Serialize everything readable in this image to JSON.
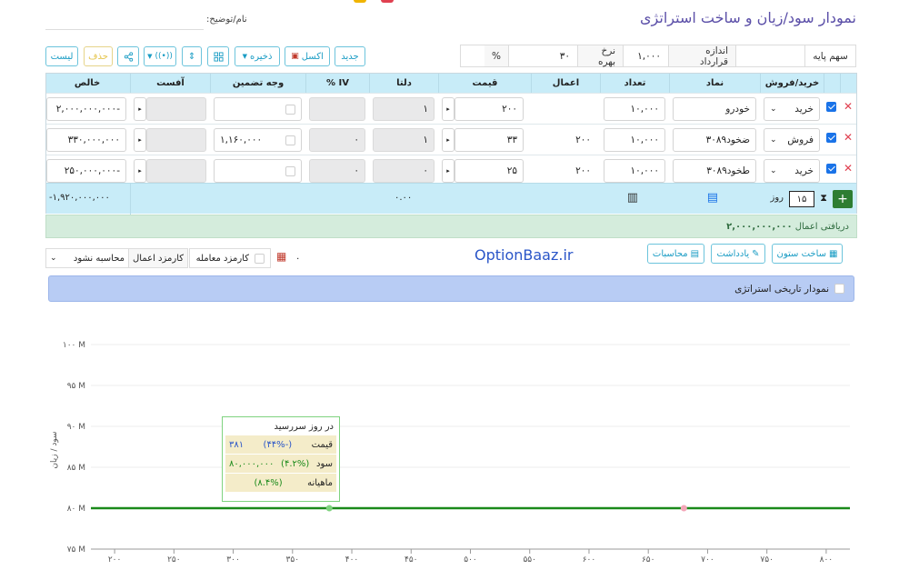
{
  "page": {
    "title": "نمودار سود/زیان و ساخت استراتژی",
    "name_label": "نام/توضیح:",
    "name_value": ""
  },
  "toolbar": {
    "new": "جدید",
    "excel": "اکسل",
    "save": "ذخیره",
    "delete": "حذف",
    "list": "لیست"
  },
  "params": {
    "underlying_label": "سهم پایه",
    "underlying_value": "",
    "contract_size_label": "اندازه قرارداد",
    "contract_size_value": "۱,۰۰۰",
    "rate_label": "نرخ بهره",
    "rate_value": "۳۰",
    "rate_unit": "%"
  },
  "table": {
    "headers": [
      "خرید/فروش",
      "نماد",
      "تعداد",
      "اعمال",
      "قیمت",
      "دلتا",
      "IV %",
      "وجه تضمین",
      "آفست",
      "خالص"
    ],
    "rows": [
      {
        "side": "خرید",
        "symbol": "خودرو",
        "qty": "۱۰,۰۰۰",
        "strike": "",
        "price": "۲۰۰",
        "delta": "۱",
        "iv": "",
        "margin": "",
        "offset": "",
        "net": "-۲,۰۰۰,۰۰۰,۰۰۰"
      },
      {
        "side": "فروش",
        "symbol": "ضخود۳۰۸۹",
        "qty": "۱۰,۰۰۰",
        "strike": "۲۰۰",
        "price": "۳۳",
        "delta": "۱",
        "iv": "۰",
        "margin": "۱,۱۶۰,۰۰۰",
        "offset": "",
        "net": "۳۳۰,۰۰۰,۰۰۰"
      },
      {
        "side": "خرید",
        "symbol": "طخود۳۰۸۹",
        "qty": "۱۰,۰۰۰",
        "strike": "۲۰۰",
        "price": "۲۵",
        "delta": "۰",
        "iv": "۰",
        "margin": "",
        "offset": "",
        "net": "-۲۵۰,۰۰۰,۰۰۰"
      }
    ],
    "footer": {
      "days": "۱۵",
      "days_label": "روز",
      "delta_total": "۰.۰۰",
      "net_total": "-۱,۹۲۰,۰۰۰,۰۰۰"
    }
  },
  "receipt": {
    "label": "دریافتی اعمال",
    "value": "۲,۰۰۰,۰۰۰,۰۰۰"
  },
  "actions": {
    "build_columns": "ساخت ستون",
    "note": "یادداشت",
    "calculations": "محاسبات",
    "brand": "OptionBaaz.ir",
    "trade_fee": "کارمزد معامله",
    "exercise_fee": "کارمزد اعمال",
    "fee_select": "محاسبه نشود",
    "zero_value": "۰"
  },
  "chart_header": {
    "label": "نمودار تاریخی استراتژی"
  },
  "chart_data": {
    "type": "line",
    "ylabel": "سود / زیان",
    "xlabel": "",
    "x_ticks": [
      "۲۰۰",
      "۲۵۰",
      "۳۰۰",
      "۳۵۰",
      "۴۰۰",
      "۴۵۰",
      "۵۰۰",
      "۵۵۰",
      "۶۰۰",
      "۶۵۰",
      "۷۰۰",
      "۷۵۰",
      "۸۰۰"
    ],
    "y_ticks": [
      "۷۵ M",
      "۸۰ M",
      "۸۵ M",
      "۹۰ M",
      "۹۵ M",
      "۱۰۰ M"
    ],
    "xlim": [
      180,
      820
    ],
    "ylim": [
      75,
      100
    ],
    "series": [
      {
        "values_x": [
          180,
          820
        ],
        "values_y": [
          80,
          80
        ],
        "color": "#1a8a1a"
      }
    ],
    "markers": [
      {
        "x": 381,
        "y": 80,
        "color": "#7fd37f"
      },
      {
        "x": 680,
        "y": 80,
        "color": "#f4a6b8"
      }
    ],
    "tooltip": {
      "title": "در روز سررسید",
      "rows": [
        {
          "label": "قیمت",
          "pct": "(-۴۴%)",
          "value": "۳۸۱"
        },
        {
          "label": "سود",
          "pct": "(۴.۲%)",
          "value": "۸۰,۰۰۰,۰۰۰"
        },
        {
          "label": "ماهیانه",
          "pct": "(۸.۴%)",
          "value": ""
        }
      ]
    }
  }
}
